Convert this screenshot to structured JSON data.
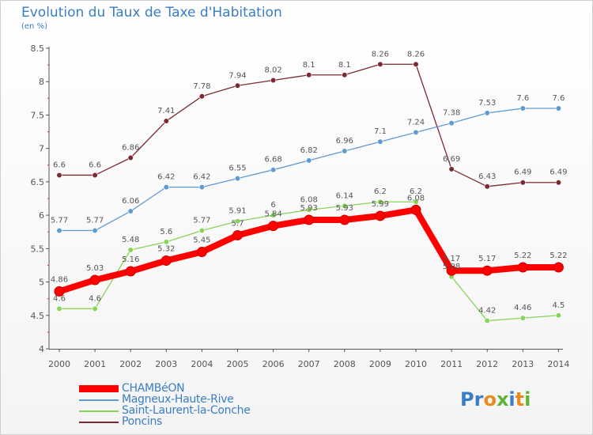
{
  "page": {
    "title": "Evolution du Taux de Taxe d'Habitation",
    "subtitle": "(en %)"
  },
  "logo": {
    "text": "Proxiti"
  },
  "chart_data": {
    "type": "line",
    "title": "Evolution du Taux de Taxe d'Habitation",
    "ylabel": "(en %)",
    "xlabel": "",
    "x": [
      "2000",
      "2001",
      "2002",
      "2003",
      "2004",
      "2005",
      "2006",
      "2007",
      "2008",
      "2009",
      "2010",
      "2011",
      "2012",
      "2013",
      "2014"
    ],
    "ylim": [
      4,
      8.5
    ],
    "yticks": [
      "4",
      "4.5",
      "5",
      "5.5",
      "6",
      "6.5",
      "7",
      "7.5",
      "8",
      "8.5"
    ],
    "grid": false,
    "legend_position": "bottom-left",
    "series": [
      {
        "name": "CHAMBéON",
        "color": "#ff0000",
        "values": [
          4.86,
          5.03,
          5.16,
          5.32,
          5.45,
          5.7,
          5.84,
          5.93,
          5.93,
          5.99,
          6.08,
          5.17,
          5.17,
          5.22,
          5.22
        ],
        "labels": [
          "4.86",
          "5.03",
          "5.16",
          "5.32",
          "5.45",
          "5.7",
          "5.84",
          "5.93",
          "5.93",
          "5.99",
          "6.08",
          "5.17",
          "5.17",
          "5.22",
          "5.22"
        ]
      },
      {
        "name": "Magneux-Haute-Rive",
        "color": "#5f9ad2",
        "values": [
          5.77,
          5.77,
          6.06,
          6.42,
          6.42,
          6.55,
          6.68,
          6.82,
          6.96,
          7.1,
          7.24,
          7.38,
          7.53,
          7.6,
          7.6
        ],
        "labels": [
          "5.77",
          "5.77",
          "6.06",
          "6.42",
          "6.42",
          "6.55",
          "6.68",
          "6.82",
          "6.96",
          "7.1",
          "7.24",
          "7.38",
          "7.53",
          "7.6",
          "7.6"
        ]
      },
      {
        "name": "Saint-Laurent-la-Conche",
        "color": "#88d45a",
        "values": [
          4.6,
          4.6,
          5.48,
          5.6,
          5.77,
          5.91,
          6,
          6.08,
          6.14,
          6.2,
          6.2,
          5.08,
          4.42,
          4.46,
          4.5
        ],
        "labels": [
          "4.6",
          "4.6",
          "5.48",
          "5.6",
          "5.77",
          "5.91",
          "6",
          "6.08",
          "6.14",
          "6.2",
          "6.2",
          "5.08",
          "4.42",
          "4.46",
          "4.5"
        ]
      },
      {
        "name": "Poncins",
        "color": "#7a2a30",
        "values": [
          6.6,
          6.6,
          6.86,
          7.41,
          7.78,
          7.94,
          8.02,
          8.1,
          8.1,
          8.26,
          8.26,
          6.69,
          6.43,
          6.49,
          6.49
        ],
        "labels": [
          "6.6",
          "6.6",
          "6.86",
          "7.41",
          "7.78",
          "7.94",
          "8.02",
          "8.1",
          "8.1",
          "8.26",
          "8.26",
          "6.69",
          "6.43",
          "6.49",
          "6.49"
        ]
      }
    ]
  }
}
